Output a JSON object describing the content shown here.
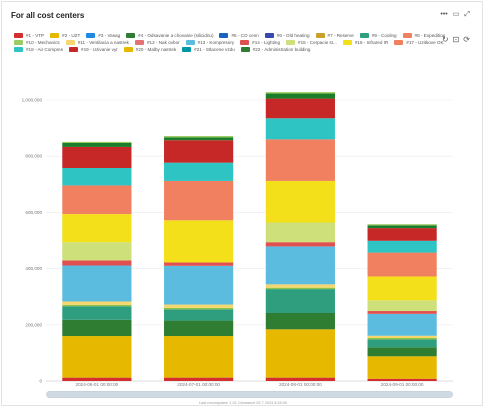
{
  "panel": {
    "title": "For all cost centers",
    "header_icons": [
      "more-icon",
      "minimize-icon",
      "expand-icon"
    ],
    "chart_tool_icons": [
      "refresh-icon",
      "zoom-reset-icon",
      "reload-icon"
    ]
  },
  "footnote": "Last recomputed: 1.01 Clearance 25 7 2024 8:28:45",
  "chart_data": {
    "type": "bar",
    "stacked": true,
    "title": "",
    "xlabel": "",
    "ylabel": "",
    "ylim": [
      0,
      1000000
    ],
    "y_ticks": [
      0,
      200000,
      400000,
      600000,
      800000,
      1000000
    ],
    "y_tick_labels": [
      "0",
      "200,000",
      "400,000",
      "600,000",
      "800,000",
      "1,000,000"
    ],
    "grid": true,
    "legend_position": "top",
    "categories": [
      "2024-06-01 00:00:00",
      "2024-07-01 00:00:00",
      "2024-08-01 00:00:00",
      "2024-09-01 00:00:00"
    ],
    "series": [
      {
        "name": "#1 - VTP",
        "color": "#d32f2f",
        "values": [
          12000,
          12000,
          12000,
          8000
        ]
      },
      {
        "name": "#20 - Malby nastrek",
        "color": "#e6b800",
        "values": [
          148000,
          148000,
          172000,
          80000
        ]
      },
      {
        "name": "#22 - Administration building",
        "color": "#2e7d32",
        "values": [
          58000,
          55000,
          58000,
          32000
        ]
      },
      {
        "name": "#5 - CO cenn",
        "color": "#1565c0",
        "values": [
          0,
          0,
          0,
          0
        ]
      },
      {
        "name": "#9 - Cooling",
        "color": "#2e9e7e",
        "values": [
          48000,
          40000,
          85000,
          28000
        ]
      },
      {
        "name": "#21 - Stlacene vzduch",
        "color": "#0097a7",
        "values": [
          0,
          0,
          0,
          0
        ]
      },
      {
        "name": "#6 - Old heating",
        "color": "#8bc34a",
        "values": [
          5000,
          5000,
          5000,
          5000
        ]
      },
      {
        "name": "#11 - Air Handle",
        "color": "#f5d76e",
        "values": [
          12000,
          12000,
          12000,
          8000
        ]
      },
      {
        "name": "#13 - Kompresory",
        "color": "#5bbce0",
        "values": [
          128000,
          138000,
          135000,
          78000
        ]
      },
      {
        "name": "#14 - Lighting",
        "color": "#e15050",
        "values": [
          18000,
          12000,
          15000,
          10000
        ]
      },
      {
        "name": "#15 - Cerpacie stanica",
        "color": "#cde07a",
        "values": [
          65000,
          0,
          70000,
          38000
        ]
      },
      {
        "name": "#16 - Infrared",
        "color": "#f4e01a",
        "values": [
          100000,
          150000,
          148000,
          85000
        ]
      },
      {
        "name": "#8 - Expedition",
        "color": "#f08060",
        "values": [
          102000,
          140000,
          148000,
          85000
        ]
      },
      {
        "name": "#18 - Compressor",
        "color": "#2ec4c4",
        "values": [
          62000,
          65000,
          75000,
          42000
        ]
      },
      {
        "name": "#19 - Uzivanie",
        "color": "#c62828",
        "values": [
          75000,
          80000,
          70000,
          45000
        ]
      },
      {
        "name": "#4 - Odsavanie",
        "color": "#1b7d2a",
        "values": [
          14000,
          10000,
          18000,
          10000
        ]
      },
      {
        "name": "#10 - Mechanics",
        "color": "#9ccc65",
        "values": [
          4000,
          5000,
          5000,
          4000
        ]
      }
    ]
  },
  "legend": [
    {
      "name": "#1 - VTP",
      "color": "#d32f2f"
    },
    {
      "name": "#2 - UZT",
      "color": "#e6b800"
    },
    {
      "name": "#3 - Vasag",
      "color": "#1e88e5"
    },
    {
      "name": "#4 - Odsavanie a chovanie (silicidnu)",
      "color": "#2e7d32"
    },
    {
      "name": "#5 - CO cenn",
      "color": "#1565c0"
    },
    {
      "name": "#6 - Old heating",
      "color": "#3949ab"
    },
    {
      "name": "#7 - Reserve",
      "color": "#c9a227"
    },
    {
      "name": "#9 - Cooling",
      "color": "#2e9e7e"
    },
    {
      "name": "#8 - Expedition",
      "color": "#f08060"
    },
    {
      "name": "#10 - Mechanics",
      "color": "#9ccc65"
    },
    {
      "name": "#11 - Ventilacia a nastrek",
      "color": "#f5d76e"
    },
    {
      "name": "#12 - Nak ovbor",
      "color": "#e57373"
    },
    {
      "name": "#13 - Kompresory",
      "color": "#5bbce0"
    },
    {
      "name": "#14 - Lighting",
      "color": "#e15050"
    },
    {
      "name": "#15 - Cerpacie st...",
      "color": "#cde07a"
    },
    {
      "name": "#16 - Infrared IR",
      "color": "#f4e01a"
    },
    {
      "name": "#17 - Uzitkove OK",
      "color": "#f08060"
    },
    {
      "name": "#18 - Air Compres",
      "color": "#2ec4c4"
    },
    {
      "name": "#19 - Uzivanie vyr",
      "color": "#c62828"
    },
    {
      "name": "#20 - Malby nastrek",
      "color": "#e6b800"
    },
    {
      "name": "#21 - Stlacene vzdu",
      "color": "#0097a7"
    },
    {
      "name": "#22 - Administration building",
      "color": "#2e7d32"
    }
  ]
}
